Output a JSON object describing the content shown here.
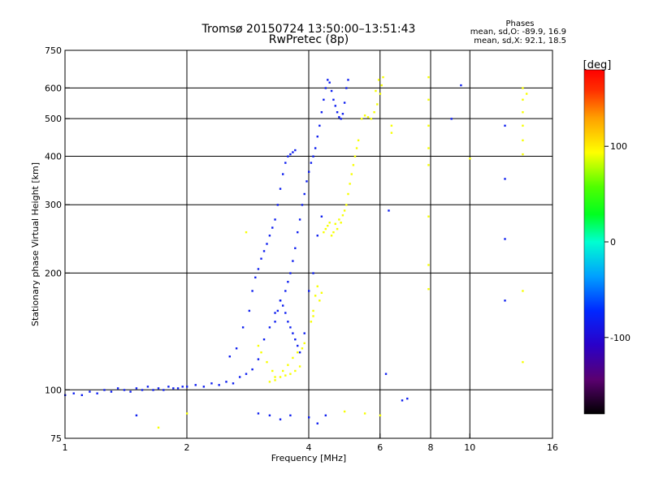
{
  "chart_data": {
    "type": "scatter",
    "title": "Tromsø 20150724 13:50:00–13:51:43",
    "subtitle": "RwPretec (8p)",
    "xlabel": "Frequency [MHz]",
    "ylabel": "Stationary phase Virtual Height [km]",
    "x_scale": "log",
    "y_scale": "log",
    "xlim": [
      1,
      16
    ],
    "ylim": [
      75,
      750
    ],
    "x_ticks": [
      {
        "value": 1,
        "label": "1"
      },
      {
        "value": 2,
        "label": "2"
      },
      {
        "value": 4,
        "label": "4"
      },
      {
        "value": 6,
        "label": "6"
      },
      {
        "value": 8,
        "label": "8"
      },
      {
        "value": 10,
        "label": "10"
      },
      {
        "value": 16,
        "label": "16"
      }
    ],
    "y_ticks": [
      {
        "value": 75,
        "label": "75"
      },
      {
        "value": 100,
        "label": "100"
      },
      {
        "value": 200,
        "label": "200"
      },
      {
        "value": 300,
        "label": "300"
      },
      {
        "value": 400,
        "label": "400"
      },
      {
        "value": 500,
        "label": "500"
      },
      {
        "value": 600,
        "label": "600"
      },
      {
        "value": 750,
        "label": "750"
      }
    ],
    "grid_x": [
      2,
      4,
      6,
      8,
      10
    ],
    "grid_y": [
      100,
      200,
      300,
      400,
      500,
      600
    ],
    "grid": true,
    "stats": {
      "title": "Phases",
      "line_o": "mean, sd,O: -89.9, 16.9",
      "line_x": "mean, sd,X:  92.1, 18.5"
    },
    "colorbar": {
      "label": "[deg]",
      "range": [
        -180,
        180
      ],
      "ticks": [
        {
          "value": 100,
          "label": "100"
        },
        {
          "value": 0,
          "label": "0"
        },
        {
          "value": -100,
          "label": "-100"
        }
      ]
    },
    "series": [
      {
        "points": [
          [
            1.0,
            97,
            -82
          ],
          [
            1.05,
            98,
            -82
          ],
          [
            1.1,
            97,
            -82
          ],
          [
            1.15,
            99,
            -82
          ],
          [
            1.2,
            98,
            -82
          ],
          [
            1.25,
            100,
            -82
          ],
          [
            1.3,
            99,
            -82
          ],
          [
            1.35,
            101,
            -82
          ],
          [
            1.4,
            100,
            -82
          ],
          [
            1.45,
            99,
            -82
          ],
          [
            1.5,
            101,
            -82
          ],
          [
            1.55,
            100,
            -82
          ],
          [
            1.6,
            102,
            -82
          ],
          [
            1.65,
            100,
            -82
          ],
          [
            1.7,
            101,
            -82
          ],
          [
            1.75,
            100,
            -82
          ],
          [
            1.8,
            102,
            -82
          ],
          [
            1.85,
            101,
            -82
          ],
          [
            1.9,
            101,
            -82
          ],
          [
            1.95,
            102,
            -82
          ],
          [
            2.0,
            102,
            -82
          ],
          [
            2.1,
            103,
            -82
          ],
          [
            2.2,
            102,
            -82
          ],
          [
            2.3,
            104,
            -82
          ],
          [
            2.4,
            103,
            -82
          ],
          [
            2.5,
            105,
            -82
          ],
          [
            2.6,
            104,
            -82
          ],
          [
            2.7,
            108,
            -82
          ],
          [
            2.8,
            110,
            -82
          ],
          [
            2.9,
            113,
            -82
          ],
          [
            3.0,
            120,
            -82
          ],
          [
            3.1,
            135,
            -82
          ],
          [
            3.2,
            145,
            -82
          ],
          [
            3.3,
            158,
            -82
          ],
          [
            3.4,
            170,
            -82
          ],
          [
            3.5,
            180,
            -82
          ],
          [
            3.55,
            190,
            -82
          ],
          [
            3.6,
            200,
            -82
          ],
          [
            3.65,
            215,
            -82
          ],
          [
            3.7,
            232,
            -82
          ],
          [
            3.75,
            255,
            -82
          ],
          [
            3.8,
            275,
            -82
          ],
          [
            3.85,
            300,
            -82
          ],
          [
            3.9,
            320,
            -82
          ],
          [
            3.95,
            345,
            -82
          ],
          [
            4.0,
            365,
            -82
          ],
          [
            4.05,
            385,
            -82
          ],
          [
            4.1,
            400,
            -82
          ],
          [
            4.15,
            420,
            -82
          ],
          [
            4.2,
            450,
            -82
          ],
          [
            4.25,
            480,
            -82
          ],
          [
            4.3,
            520,
            -82
          ],
          [
            4.35,
            560,
            -82
          ],
          [
            4.4,
            600,
            -82
          ],
          [
            4.45,
            630,
            -82
          ],
          [
            4.5,
            620,
            -82
          ],
          [
            4.55,
            590,
            -82
          ],
          [
            4.6,
            560,
            -82
          ],
          [
            4.65,
            540,
            -82
          ],
          [
            4.7,
            520,
            -82
          ],
          [
            4.75,
            505,
            -82
          ],
          [
            4.8,
            500,
            -82
          ],
          [
            4.85,
            515,
            -82
          ],
          [
            4.9,
            550,
            -82
          ],
          [
            4.95,
            600,
            -82
          ],
          [
            5.0,
            630,
            -82
          ],
          [
            2.55,
            122,
            -82
          ],
          [
            2.65,
            128,
            -82
          ],
          [
            2.75,
            145,
            -82
          ],
          [
            2.85,
            160,
            -82
          ],
          [
            2.9,
            180,
            -82
          ],
          [
            2.95,
            195,
            -82
          ],
          [
            3.0,
            205,
            -82
          ],
          [
            3.05,
            218,
            -82
          ],
          [
            3.1,
            228,
            -82
          ],
          [
            3.15,
            238,
            -82
          ],
          [
            3.2,
            250,
            -82
          ],
          [
            3.25,
            262,
            -82
          ],
          [
            3.3,
            275,
            -82
          ],
          [
            3.35,
            300,
            -82
          ],
          [
            3.4,
            330,
            -82
          ],
          [
            3.45,
            360,
            -82
          ],
          [
            3.5,
            385,
            -82
          ],
          [
            3.55,
            400,
            -82
          ],
          [
            3.6,
            405,
            -82
          ],
          [
            3.65,
            410,
            -82
          ],
          [
            3.7,
            415,
            -82
          ],
          [
            3.3,
            150,
            -82
          ],
          [
            3.35,
            160,
            -82
          ],
          [
            3.4,
            170,
            -82
          ],
          [
            3.45,
            165,
            -82
          ],
          [
            3.5,
            158,
            -82
          ],
          [
            3.55,
            150,
            -82
          ],
          [
            3.6,
            145,
            -82
          ],
          [
            3.65,
            140,
            -82
          ],
          [
            3.7,
            135,
            -82
          ],
          [
            3.75,
            130,
            -82
          ],
          [
            3.8,
            125,
            -82
          ],
          [
            3.9,
            140,
            -82
          ],
          [
            4.0,
            180,
            -82
          ],
          [
            4.1,
            200,
            -82
          ],
          [
            4.2,
            250,
            -82
          ],
          [
            4.3,
            280,
            -82
          ],
          [
            4.0,
            85,
            -82
          ],
          [
            4.2,
            82,
            -82
          ],
          [
            4.4,
            86,
            -82
          ],
          [
            3.0,
            87,
            -82
          ],
          [
            3.2,
            86,
            -82
          ],
          [
            3.4,
            84,
            -82
          ],
          [
            3.6,
            86,
            -82
          ],
          [
            1.5,
            86,
            -82
          ],
          [
            9.5,
            610,
            -82
          ],
          [
            12.2,
            480,
            -82
          ],
          [
            12.2,
            350,
            -82
          ],
          [
            12.2,
            245,
            -82
          ],
          [
            12.2,
            170,
            -82
          ],
          [
            6.3,
            290,
            -82
          ],
          [
            6.2,
            110,
            -82
          ],
          [
            6.8,
            94,
            -82
          ],
          [
            9.0,
            500,
            -82
          ],
          [
            7.0,
            95,
            -82
          ]
        ]
      },
      {
        "points": [
          [
            3.2,
            105,
            92
          ],
          [
            3.3,
            106,
            92
          ],
          [
            3.4,
            108,
            92
          ],
          [
            3.5,
            109,
            92
          ],
          [
            3.6,
            110,
            92
          ],
          [
            3.7,
            112,
            92
          ],
          [
            3.8,
            115,
            92
          ],
          [
            4.1,
            160,
            92
          ],
          [
            4.15,
            175,
            92
          ],
          [
            4.2,
            185,
            92
          ],
          [
            4.25,
            170,
            92
          ],
          [
            4.3,
            178,
            92
          ],
          [
            4.4,
            260,
            92
          ],
          [
            4.5,
            270,
            92
          ],
          [
            4.6,
            255,
            92
          ],
          [
            4.7,
            260,
            92
          ],
          [
            4.8,
            270,
            92
          ],
          [
            4.9,
            290,
            92
          ],
          [
            5.0,
            320,
            92
          ],
          [
            5.05,
            340,
            92
          ],
          [
            5.1,
            360,
            92
          ],
          [
            5.15,
            380,
            92
          ],
          [
            5.2,
            400,
            92
          ],
          [
            5.25,
            420,
            92
          ],
          [
            5.3,
            440,
            92
          ],
          [
            5.4,
            500,
            92
          ],
          [
            5.5,
            510,
            92
          ],
          [
            5.6,
            505,
            92
          ],
          [
            5.7,
            500,
            92
          ],
          [
            5.8,
            520,
            92
          ],
          [
            5.9,
            545,
            92
          ],
          [
            6.0,
            580,
            92
          ],
          [
            6.05,
            610,
            92
          ],
          [
            6.1,
            640,
            92
          ],
          [
            5.95,
            630,
            92
          ],
          [
            5.85,
            590,
            92
          ],
          [
            2.8,
            255,
            92
          ],
          [
            3.0,
            130,
            92
          ],
          [
            3.05,
            125,
            92
          ],
          [
            3.15,
            118,
            92
          ],
          [
            3.25,
            112,
            92
          ],
          [
            3.3,
            108,
            92
          ],
          [
            3.45,
            112,
            92
          ],
          [
            3.55,
            116,
            92
          ],
          [
            3.65,
            121,
            92
          ],
          [
            3.75,
            125,
            92
          ],
          [
            3.85,
            128,
            92
          ],
          [
            3.9,
            132,
            92
          ],
          [
            4.05,
            150,
            92
          ],
          [
            4.1,
            155,
            92
          ],
          [
            4.35,
            255,
            92
          ],
          [
            4.45,
            265,
            92
          ],
          [
            4.55,
            250,
            92
          ],
          [
            4.65,
            268,
            92
          ],
          [
            4.75,
            275,
            92
          ],
          [
            4.85,
            282,
            92
          ],
          [
            4.95,
            300,
            92
          ],
          [
            7.9,
            640,
            92
          ],
          [
            7.9,
            560,
            92
          ],
          [
            7.9,
            480,
            92
          ],
          [
            7.9,
            420,
            92
          ],
          [
            7.9,
            380,
            92
          ],
          [
            7.9,
            280,
            92
          ],
          [
            7.9,
            210,
            92
          ],
          [
            7.9,
            182,
            92
          ],
          [
            6.4,
            480,
            92
          ],
          [
            6.4,
            460,
            92
          ],
          [
            6.0,
            86,
            92
          ],
          [
            4.9,
            88,
            92
          ],
          [
            5.5,
            87,
            92
          ],
          [
            13.5,
            600,
            92
          ],
          [
            13.5,
            560,
            92
          ],
          [
            13.5,
            520,
            92
          ],
          [
            13.5,
            480,
            92
          ],
          [
            13.5,
            440,
            92
          ],
          [
            13.5,
            405,
            92
          ],
          [
            13.5,
            180,
            92
          ],
          [
            13.5,
            118,
            92
          ],
          [
            13.8,
            580,
            92
          ],
          [
            10.0,
            395,
            92
          ],
          [
            1.7,
            80,
            92
          ],
          [
            2.0,
            87,
            92
          ]
        ]
      }
    ]
  }
}
